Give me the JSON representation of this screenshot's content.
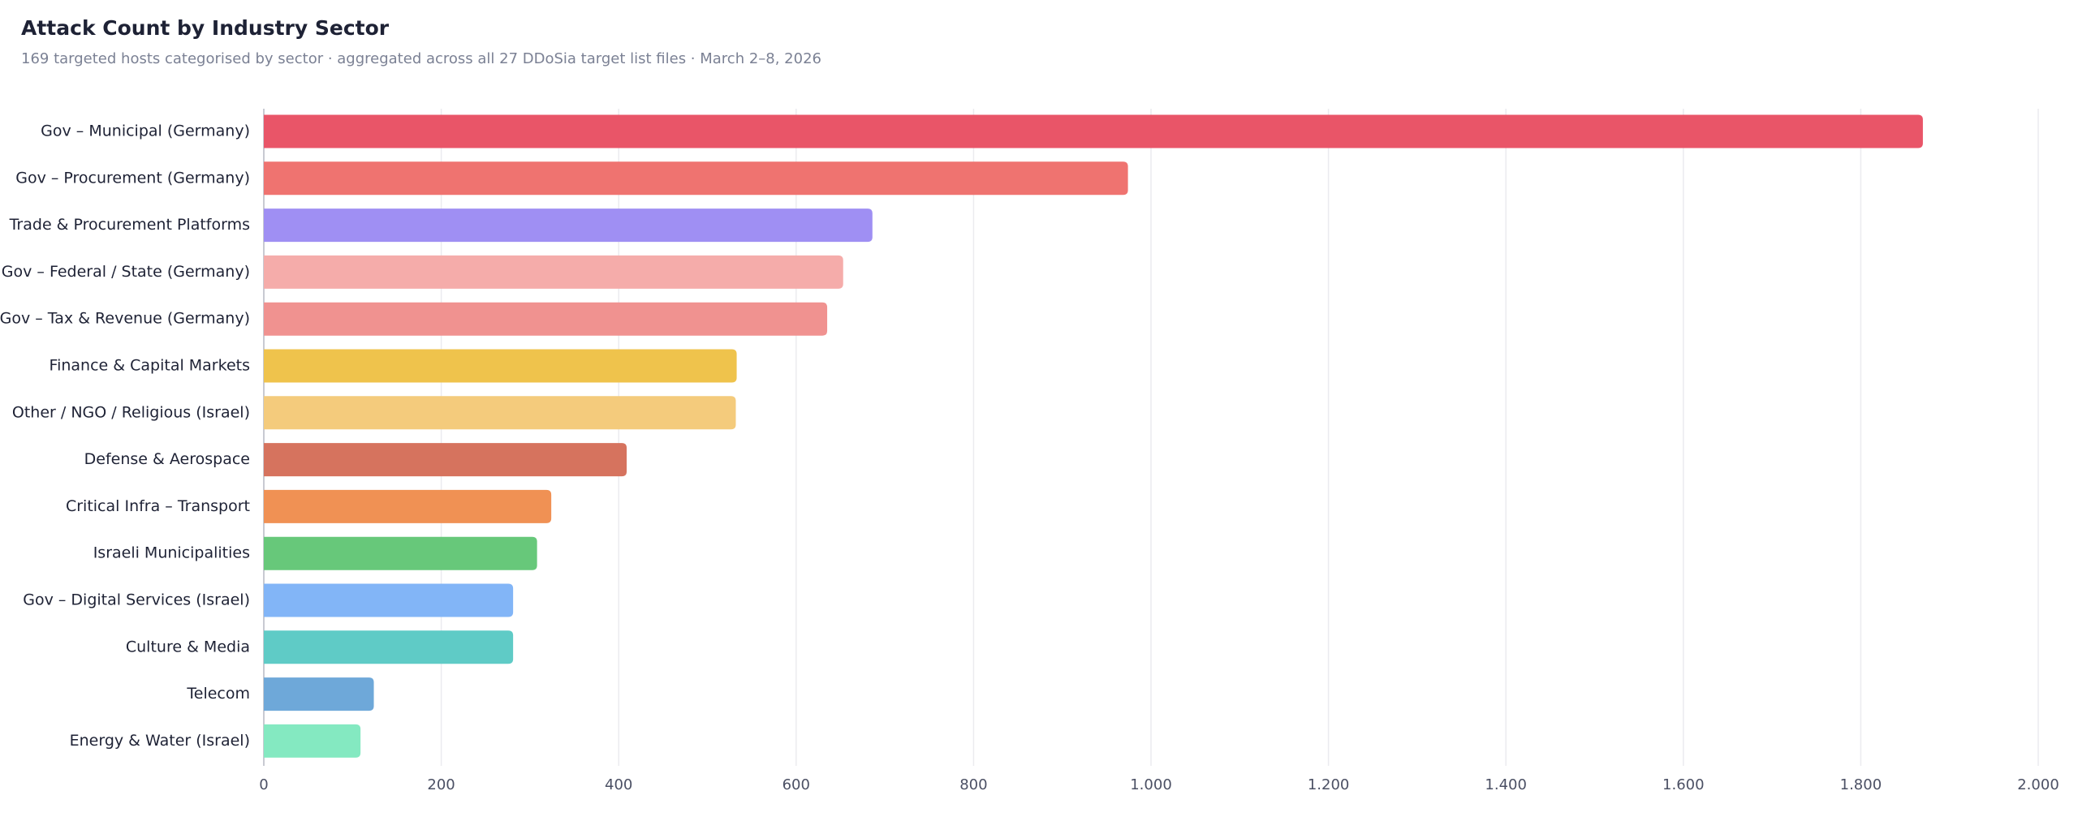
{
  "chart_data": {
    "type": "bar",
    "orientation": "horizontal",
    "title": "Attack Count by Industry Sector",
    "subtitle": "169 targeted hosts categorised by sector · aggregated across all 27 DDoSia target list files · March 2–8, 2026",
    "categories": [
      "Gov – Municipal (Germany)",
      "Gov – Procurement (Germany)",
      "Trade & Procurement Platforms",
      "Gov – Federal / State (Germany)",
      "Gov – Tax & Revenue (Germany)",
      "Finance & Capital Markets",
      "Other / NGO / Religious (Israel)",
      "Defense & Aerospace",
      "Critical Infra – Transport",
      "Israeli Municipalities",
      "Gov – Digital Services (Israel)",
      "Culture & Media",
      "Telecom",
      "Energy & Water (Israel)"
    ],
    "values": [
      1870,
      974,
      686,
      653,
      635,
      533,
      532,
      409,
      324,
      308,
      281,
      281,
      124,
      109
    ],
    "colors": [
      "#e95568",
      "#ef7370",
      "#9f8ff3",
      "#f5acaa",
      "#f09290",
      "#efc34c",
      "#f4cb7c",
      "#d6735e",
      "#f09154",
      "#67c87a",
      "#82b5f7",
      "#5fcbc6",
      "#6ea8d9",
      "#84e9c1"
    ],
    "xlim": [
      0,
      2000
    ],
    "xticks": [
      0,
      200,
      400,
      600,
      800,
      {
        "value": 1000,
        "label": "1.000"
      },
      {
        "value": 1200,
        "label": "1.200"
      },
      {
        "value": 1400,
        "label": "1.400"
      },
      {
        "value": 1600,
        "label": "1.600"
      },
      {
        "value": 1800,
        "label": "1.800"
      },
      {
        "value": 2000,
        "label": "2.000"
      }
    ],
    "grid": true
  }
}
